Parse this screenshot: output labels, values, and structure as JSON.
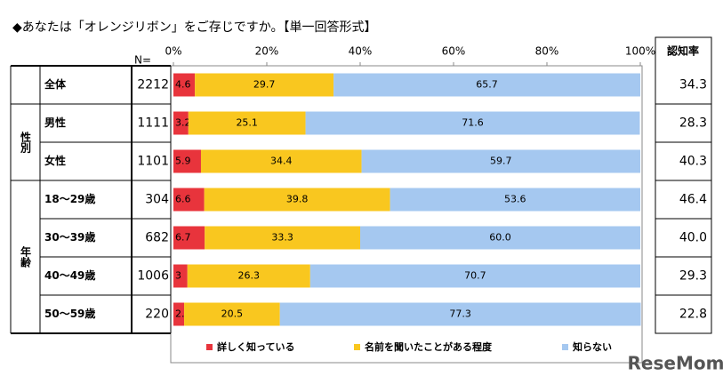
{
  "chart_data": {
    "type": "stacked_barh",
    "title": "◆あなたは「オレンジリボン」をご存じですか。【単一回答形式】",
    "n_header": "N=",
    "rate_header": "認知率",
    "groups": [
      {
        "label": "性別",
        "rows": [
          1,
          2
        ]
      },
      {
        "label": "年齢",
        "rows": [
          3,
          6
        ]
      }
    ],
    "categories": [
      "全体",
      "男性",
      "女性",
      "18～29歳",
      "30～39歳",
      "40～49歳",
      "50～59歳"
    ],
    "n": [
      2212,
      1111,
      1101,
      304,
      682,
      1006,
      220
    ],
    "rate": [
      "34.3",
      "28.3",
      "40.3",
      "46.4",
      "40.0",
      "29.3",
      "22.8"
    ],
    "series": [
      {
        "name": "詳しく知っている",
        "color": "#e8343c",
        "values": [
          4.6,
          3.2,
          5.9,
          6.6,
          6.7,
          3.0,
          2.3
        ]
      },
      {
        "name": "名前を聞いたことがある程度",
        "color": "#f9c71f",
        "values": [
          29.7,
          25.1,
          34.4,
          39.8,
          33.3,
          26.3,
          20.5
        ]
      },
      {
        "name": "知らない",
        "color": "#a5c8f0",
        "values": [
          65.7,
          71.6,
          59.7,
          53.6,
          60.0,
          70.7,
          77.3
        ],
        "value_labels": [
          "65.7",
          "71.6",
          "59.7",
          "53.6",
          "60.0",
          "70.7",
          "77.3"
        ]
      }
    ],
    "xlim": [
      0,
      100
    ],
    "xticks": [
      {
        "value": 0,
        "label": "0%"
      },
      {
        "value": 20,
        "label": "20%"
      },
      {
        "value": 40,
        "label": "40%"
      },
      {
        "value": 60,
        "label": "60%"
      },
      {
        "value": 80,
        "label": "80%"
      },
      {
        "value": 100,
        "label": "100%"
      }
    ],
    "watermark": "ReseMom"
  }
}
